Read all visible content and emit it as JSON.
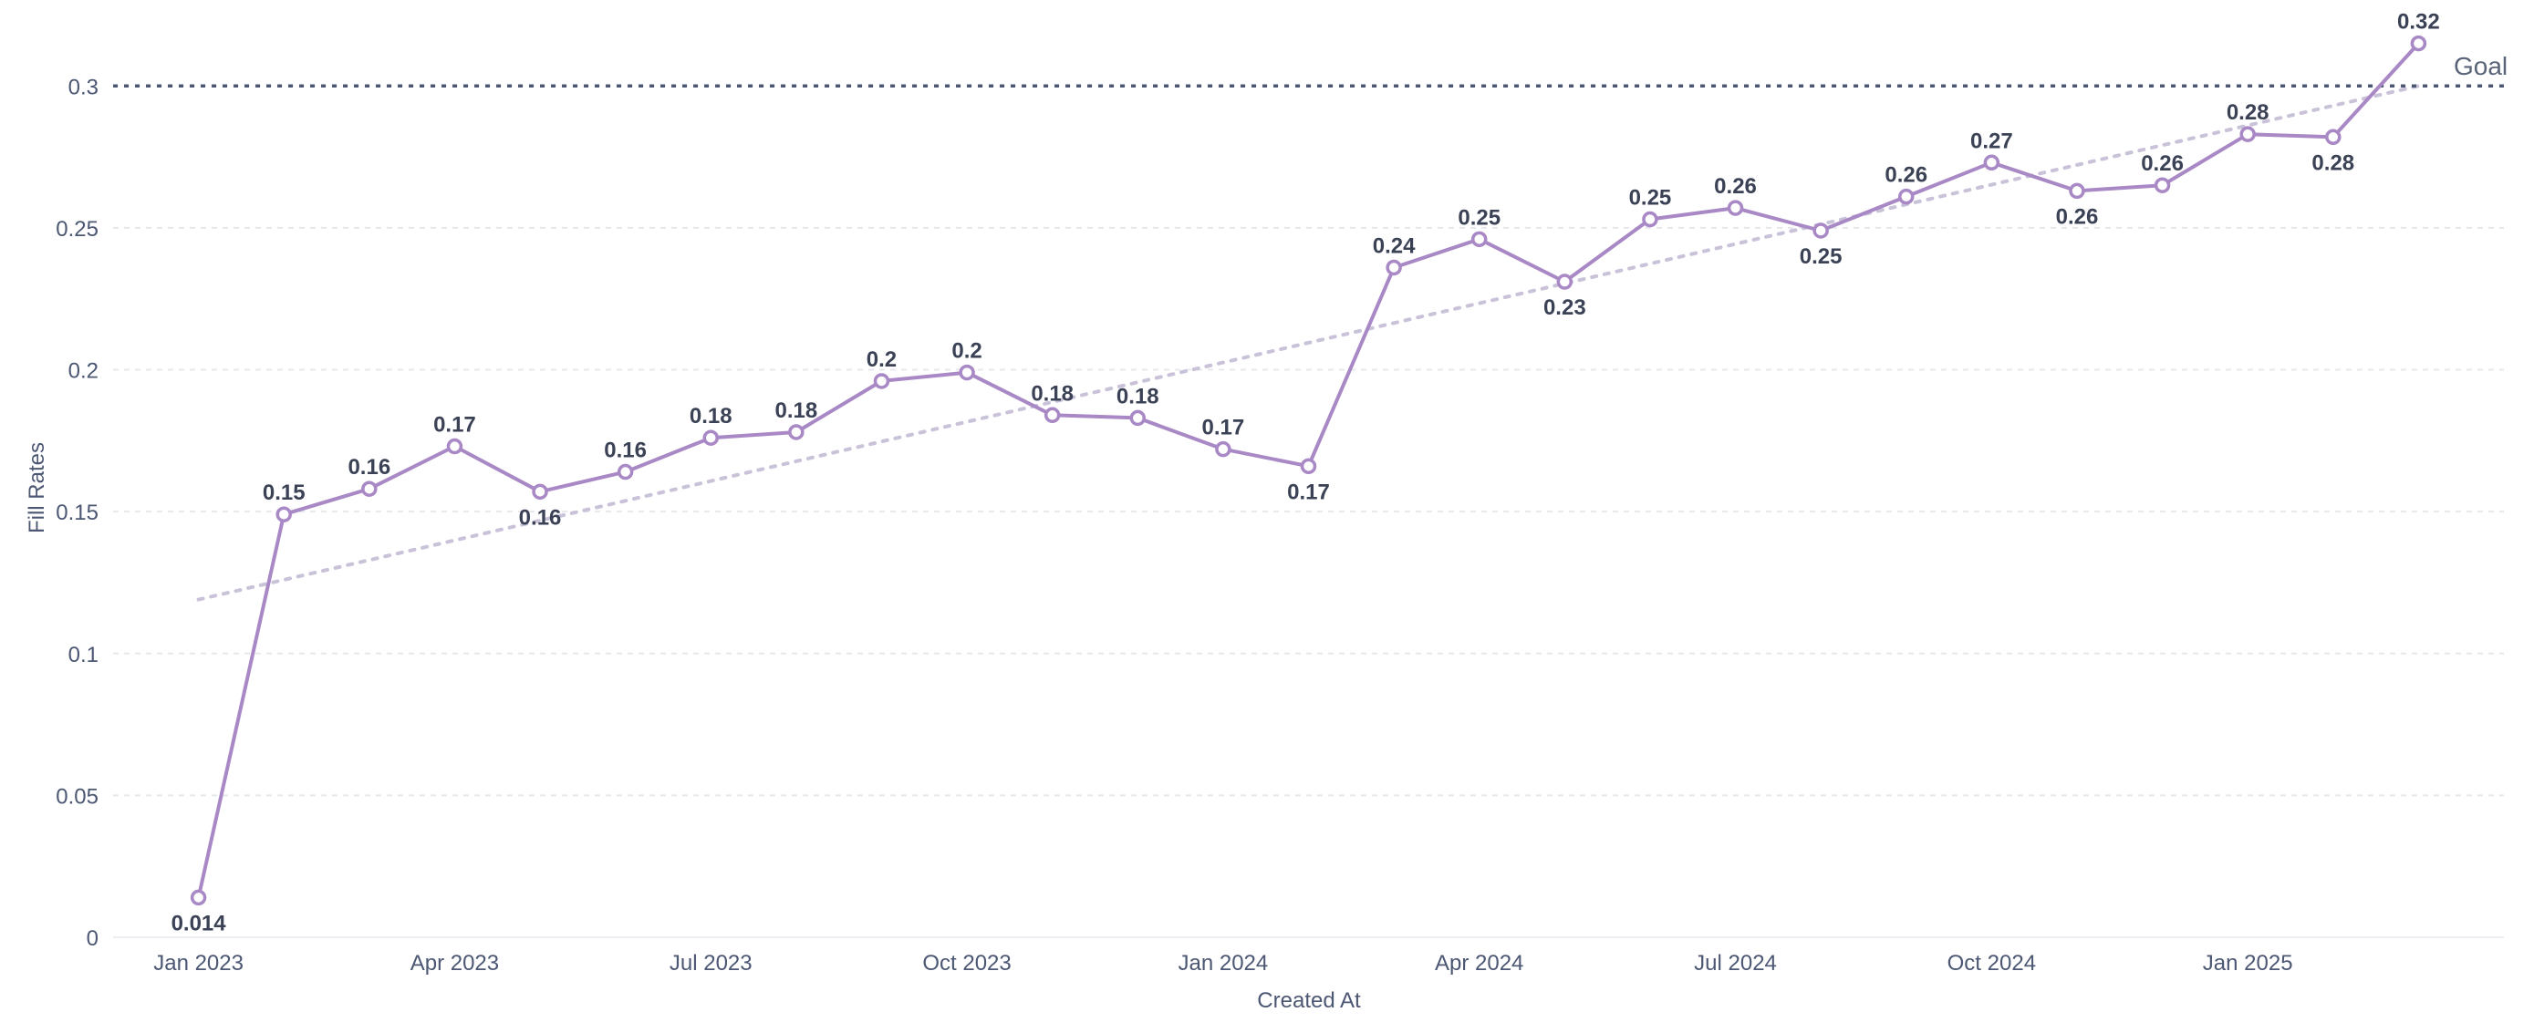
{
  "chart_data": {
    "type": "line",
    "xlabel": "Created At",
    "ylabel": "Fill Rates",
    "ylim": [
      0,
      0.32
    ],
    "y_ticks": [
      "0",
      "0.05",
      "0.1",
      "0.15",
      "0.2",
      "0.25",
      "0.3"
    ],
    "y_tick_values": [
      0,
      0.05,
      0.1,
      0.15,
      0.2,
      0.25,
      0.3
    ],
    "x_tick_labels": [
      "Jan 2023",
      "Apr 2023",
      "Jul 2023",
      "Oct 2023",
      "Jan 2024",
      "Apr 2024",
      "Jul 2024",
      "Oct 2024",
      "Jan 2025"
    ],
    "x_tick_months": [
      "2023-01",
      "2023-04",
      "2023-07",
      "2023-10",
      "2024-01",
      "2024-04",
      "2024-07",
      "2024-10",
      "2025-01"
    ],
    "x": [
      "2023-01",
      "2023-02",
      "2023-03",
      "2023-04",
      "2023-05",
      "2023-06",
      "2023-07",
      "2023-08",
      "2023-09",
      "2023-10",
      "2023-11",
      "2023-12",
      "2024-01",
      "2024-02",
      "2024-03",
      "2024-04",
      "2024-05",
      "2024-06",
      "2024-07",
      "2024-08",
      "2024-09",
      "2024-10",
      "2024-11",
      "2024-12",
      "2025-01",
      "2025-02",
      "2025-03"
    ],
    "x_range": [
      "2022-12",
      "2025-04"
    ],
    "series": [
      {
        "values": [
          0.014,
          0.149,
          0.158,
          0.173,
          0.157,
          0.164,
          0.176,
          0.178,
          0.196,
          0.199,
          0.184,
          0.183,
          0.172,
          0.166,
          0.236,
          0.246,
          0.231,
          0.253,
          0.257,
          0.249,
          0.261,
          0.273,
          0.263,
          0.265,
          0.283,
          0.282,
          0.315
        ],
        "labels": [
          "0.014",
          "0.15",
          "0.16",
          "0.17",
          "0.16",
          "0.16",
          "0.18",
          "0.18",
          "0.2",
          "0.2",
          "0.18",
          "0.18",
          "0.17",
          "0.17",
          "0.24",
          "0.25",
          "0.23",
          "0.25",
          "0.26",
          "0.25",
          "0.26",
          "0.27",
          "0.26",
          "0.26",
          "0.28",
          "0.28",
          "0.32"
        ],
        "label_position": [
          "below",
          "above",
          "above",
          "above",
          "below",
          "above",
          "above",
          "above",
          "above",
          "above",
          "above",
          "above",
          "above",
          "below",
          "above",
          "above",
          "below",
          "above",
          "above",
          "below",
          "above",
          "above",
          "below",
          "above",
          "above",
          "below",
          "above"
        ],
        "color": "#a989c5"
      }
    ],
    "trend_line": {
      "start": [
        "2023-01",
        0.119
      ],
      "end": [
        "2025-03",
        0.3
      ],
      "color": "#c9c2d8"
    },
    "goal": {
      "label": "Goal",
      "value": 0.3,
      "color": "#4c5773"
    },
    "grid": true,
    "legend": "none"
  }
}
